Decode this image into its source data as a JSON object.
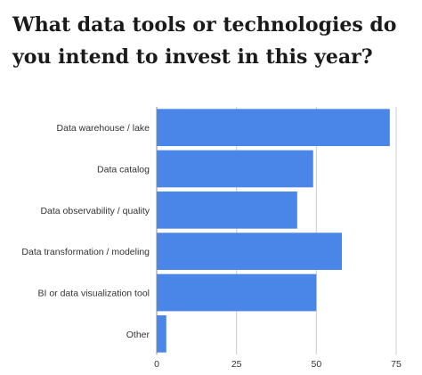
{
  "chart_data": {
    "type": "bar",
    "orientation": "horizontal",
    "title": "What data tools or technologies do you intend to invest in this year?",
    "categories": [
      "Data warehouse / lake",
      "Data catalog",
      "Data observability / quality",
      "Data transformation / modeling",
      "BI or data visualization tool",
      "Other"
    ],
    "values": [
      73,
      49,
      44,
      58,
      50,
      3
    ],
    "xlim": [
      0,
      75
    ],
    "xticks": [
      0,
      25,
      50,
      75
    ],
    "grid": true,
    "bar_color": "#4a86e8",
    "grid_color": "#cccccc"
  }
}
